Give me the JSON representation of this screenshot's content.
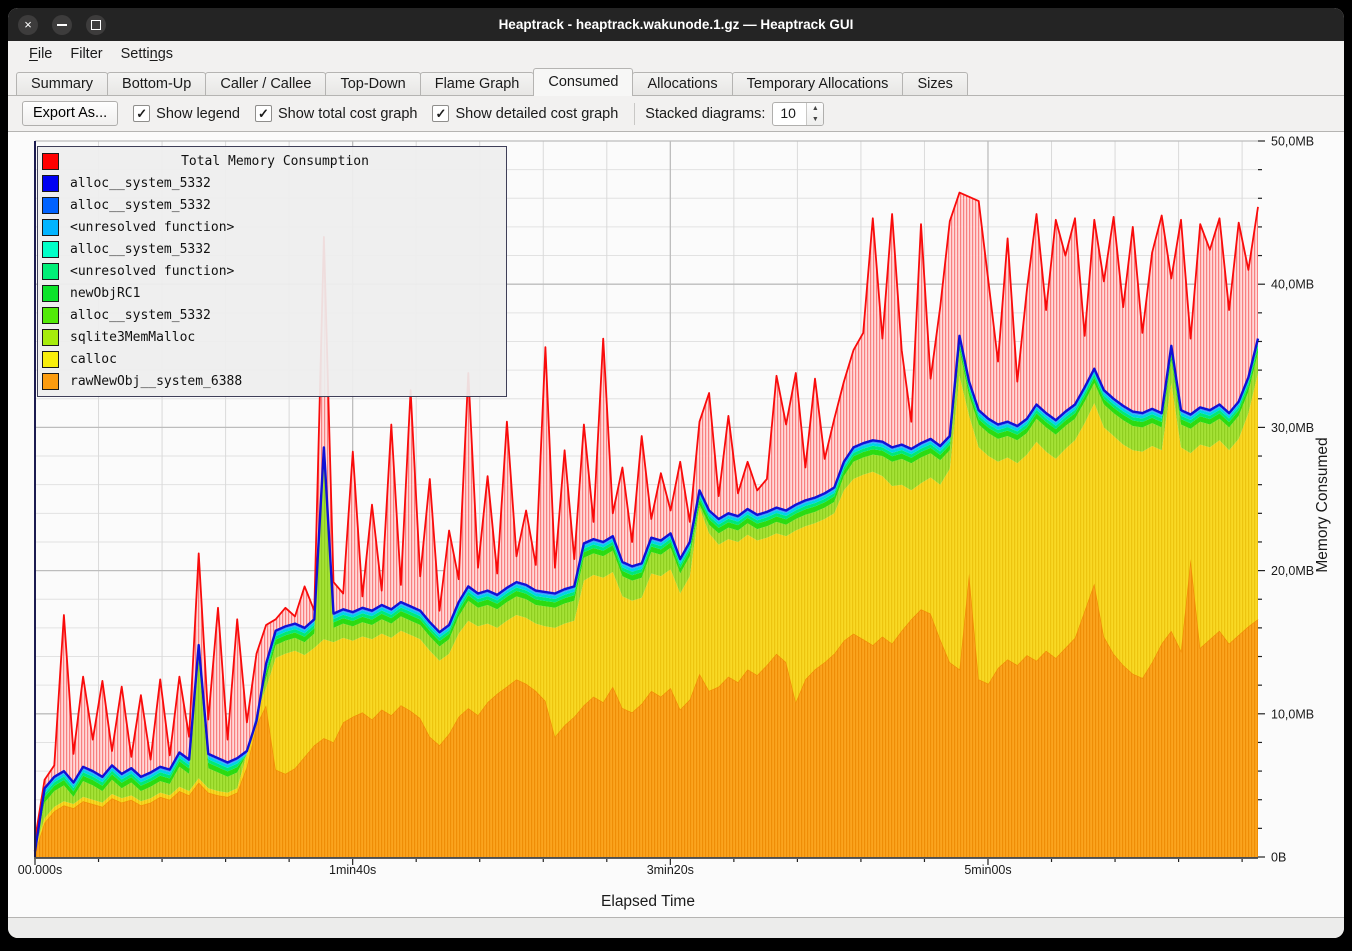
{
  "window": {
    "title": "Heaptrack - heaptrack.wakunode.1.gz — Heaptrack GUI",
    "buttons": [
      "close",
      "minimize",
      "maximize"
    ]
  },
  "menu": {
    "items": [
      {
        "label": "File",
        "underline_index": 0
      },
      {
        "label": "Filter",
        "underline_index": -1
      },
      {
        "label": "Settings",
        "underline_index": 5
      }
    ]
  },
  "tabs": {
    "active": "Consumed",
    "items": [
      "Summary",
      "Bottom-Up",
      "Caller / Callee",
      "Top-Down",
      "Flame Graph",
      "Consumed",
      "Allocations",
      "Temporary Allocations",
      "Sizes"
    ]
  },
  "toolbar": {
    "export_label": "Export As...",
    "checkboxes": [
      {
        "label": "Show legend",
        "checked": true
      },
      {
        "label": "Show total cost graph",
        "checked": true
      },
      {
        "label": "Show detailed cost graph",
        "checked": true
      }
    ],
    "check_glyph": "✓",
    "stacked_label": "Stacked diagrams:",
    "stacked_value": "10"
  },
  "legend": {
    "title": "Total Memory Consumption",
    "title_color": "#ff0000",
    "items": [
      {
        "label": "alloc__system_5332",
        "color": "#0000f2"
      },
      {
        "label": "alloc__system_5332",
        "color": "#0062ff"
      },
      {
        "label": "<unresolved function>",
        "color": "#00b4ff"
      },
      {
        "label": "alloc__system_5332",
        "color": "#00ffc8"
      },
      {
        "label": "<unresolved function>",
        "color": "#00ee77"
      },
      {
        "label": "newObjRC1",
        "color": "#0ce32a"
      },
      {
        "label": "alloc__system_5332",
        "color": "#52ea08"
      },
      {
        "label": "sqlite3MemMalloc",
        "color": "#a6ec0b"
      },
      {
        "label": "calloc",
        "color": "#f8ee0c"
      },
      {
        "label": "rawNewObj__system_6388",
        "color": "#fc9c0f"
      }
    ]
  },
  "chart_data": {
    "type": "area",
    "stacked": true,
    "title": "Total Memory Consumption",
    "xlabel": "Elapsed Time",
    "ylabel": "Memory Consumed",
    "x_axis": {
      "tick_labels": [
        "00.000s",
        "1min40s",
        "3min20s",
        "5min00s"
      ],
      "tick_values_s": [
        0,
        100,
        200,
        300
      ],
      "minor_step_s": 20,
      "range_s": [
        0,
        385
      ]
    },
    "y_axis": {
      "tick_labels": [
        "0B",
        "10,0MB",
        "20,0MB",
        "30,0MB",
        "40,0MB",
        "50,0MB"
      ],
      "tick_values_mb": [
        0,
        10,
        20,
        30,
        40,
        50
      ],
      "minor_step_mb": 2,
      "range_mb": [
        0,
        50
      ]
    },
    "sample_count": 128,
    "series": [
      {
        "name": "Total Memory Consumption",
        "color": "#f90b0b",
        "render": "spiky total line with hatched fill down to stack top",
        "values_mb": [
          1.2,
          5.4,
          6.4,
          16.9,
          7.2,
          12.6,
          8.2,
          12.3,
          7.4,
          11.9,
          7.0,
          11.3,
          6.8,
          12.4,
          7.1,
          12.6,
          8.4,
          21.2,
          9.6,
          17.4,
          8.2,
          16.6,
          9.4,
          14.2,
          16.2,
          16.6,
          17.4,
          16.8,
          18.9,
          17.2,
          43.3,
          19.2,
          18.4,
          28.3,
          18.2,
          24.6,
          18.6,
          30.2,
          19.0,
          32.6,
          19.6,
          26.4,
          17.2,
          22.8,
          19.4,
          33.8,
          20.2,
          26.6,
          19.8,
          30.4,
          21.0,
          24.2,
          20.4,
          35.6,
          20.2,
          28.4,
          20.8,
          30.2,
          23.4,
          36.2,
          24.0,
          27.2,
          22.0,
          29.4,
          23.6,
          26.8,
          24.2,
          27.6,
          23.4,
          30.4,
          32.4,
          25.2,
          30.8,
          25.4,
          27.6,
          25.6,
          26.4,
          33.6,
          30.2,
          33.8,
          27.2,
          33.4,
          27.8,
          30.6,
          33.2,
          35.4,
          36.6,
          44.6,
          36.2,
          44.9,
          35.4,
          30.4,
          44.2,
          33.4,
          38.4,
          44.4,
          46.4,
          46.1,
          45.8,
          40.2,
          34.6,
          43.2,
          33.2,
          39.6,
          44.9,
          38.2,
          44.5,
          42.0,
          44.6,
          36.4,
          44.5,
          40.2,
          44.7,
          38.4,
          44.0,
          36.6,
          42.2,
          44.8,
          40.4,
          44.5,
          36.2,
          44.2,
          42.4,
          44.6,
          38.2,
          44.3,
          41.0,
          45.4
        ]
      },
      {
        "name": "stack top: blue alloc__system_5332 / <unresolved function> bands",
        "color": "#1111d6",
        "render": "line on top of stacked areas",
        "values_mb": [
          0.4,
          4.8,
          5.6,
          6.0,
          5.2,
          6.3,
          6.0,
          5.6,
          6.4,
          5.8,
          6.2,
          5.6,
          5.9,
          6.3,
          6.1,
          7.3,
          6.8,
          14.8,
          7.2,
          6.9,
          6.6,
          6.9,
          7.4,
          9.5,
          13.5,
          15.8,
          16.1,
          16.3,
          16.0,
          16.6,
          28.6,
          17.0,
          17.3,
          17.1,
          17.4,
          17.2,
          17.6,
          17.3,
          17.8,
          17.5,
          17.2,
          16.4,
          15.7,
          16.2,
          17.8,
          18.9,
          18.4,
          18.6,
          18.3,
          18.8,
          19.2,
          19.0,
          18.6,
          18.5,
          18.4,
          18.7,
          18.9,
          21.9,
          22.2,
          22.0,
          22.4,
          20.6,
          20.3,
          20.5,
          22.3,
          22.1,
          22.6,
          20.8,
          22.0,
          25.6,
          24.2,
          23.6,
          24.0,
          23.8,
          24.3,
          23.9,
          24.1,
          24.4,
          24.2,
          24.6,
          24.9,
          25.1,
          25.4,
          25.8,
          27.6,
          28.6,
          28.9,
          29.1,
          29.0,
          28.6,
          28.8,
          28.5,
          28.9,
          29.2,
          28.7,
          29.4,
          36.4,
          33.2,
          31.2,
          30.6,
          30.2,
          30.4,
          30.1,
          30.6,
          31.6,
          31.0,
          30.5,
          31.1,
          31.6,
          32.8,
          34.1,
          32.6,
          32.0,
          31.5,
          31.1,
          31.0,
          31.3,
          31.0,
          35.7,
          31.2,
          30.9,
          31.4,
          31.2,
          31.6,
          31.0,
          31.8,
          33.5,
          36.2
        ]
      },
      {
        "name": "calloc top (green sqlite3MemMalloc/newObjRC1 bands sit between this and blue)",
        "color": "#f9d924",
        "render": "area top edge",
        "values_mb": [
          0.6,
          2.7,
          3.5,
          3.9,
          3.7,
          4.2,
          4.0,
          3.8,
          4.4,
          4.1,
          4.3,
          3.9,
          4.1,
          4.5,
          4.3,
          4.9,
          4.6,
          5.5,
          4.8,
          4.6,
          4.5,
          4.8,
          7.2,
          10.0,
          11.8,
          13.9,
          14.2,
          14.4,
          14.1,
          14.6,
          15.2,
          15.0,
          15.3,
          15.1,
          15.4,
          15.2,
          15.6,
          15.3,
          15.8,
          15.5,
          15.2,
          14.4,
          13.7,
          14.2,
          15.6,
          16.5,
          16.1,
          16.3,
          16.0,
          16.5,
          16.9,
          16.7,
          16.3,
          16.1,
          16.0,
          16.3,
          16.5,
          19.3,
          19.7,
          19.5,
          19.9,
          18.2,
          17.9,
          18.1,
          19.8,
          19.6,
          20.1,
          18.4,
          19.6,
          24.4,
          22.6,
          21.8,
          22.2,
          22.0,
          22.5,
          22.1,
          22.3,
          22.6,
          22.4,
          22.8,
          23.1,
          23.3,
          23.6,
          24.0,
          25.6,
          26.4,
          26.7,
          26.9,
          26.6,
          25.9,
          26.0,
          25.6,
          26.1,
          26.5,
          26.0,
          27.1,
          33.6,
          30.8,
          28.6,
          28.0,
          27.6,
          27.9,
          27.5,
          28.1,
          29.0,
          28.3,
          27.8,
          28.5,
          29.1,
          30.3,
          31.7,
          30.0,
          29.4,
          28.8,
          28.4,
          28.3,
          28.7,
          28.4,
          33.1,
          28.6,
          28.2,
          28.8,
          28.6,
          29.1,
          28.4,
          29.2,
          31.0,
          33.8
        ]
      },
      {
        "name": "rawNewObj__system_6388 top",
        "color": "#fba41e",
        "render": "area top edge (bottom layer)",
        "values_mb": [
          0.3,
          2.4,
          3.2,
          3.6,
          3.4,
          3.9,
          3.7,
          3.5,
          4.1,
          3.8,
          4.0,
          3.6,
          3.8,
          4.2,
          4.0,
          4.6,
          4.3,
          5.2,
          4.5,
          4.3,
          4.2,
          4.5,
          6.3,
          9.2,
          10.6,
          6.1,
          5.8,
          6.2,
          7.0,
          7.8,
          8.3,
          8.0,
          9.4,
          9.8,
          10.1,
          9.6,
          10.3,
          9.9,
          10.6,
          10.2,
          9.7,
          8.4,
          7.8,
          8.6,
          9.8,
          10.4,
          9.9,
          10.8,
          11.4,
          11.9,
          12.4,
          12.1,
          11.6,
          10.9,
          8.4,
          9.2,
          9.8,
          10.6,
          11.2,
          10.8,
          11.9,
          10.4,
          10.1,
          10.7,
          11.6,
          11.2,
          11.8,
          10.3,
          11.0,
          12.8,
          11.6,
          11.9,
          12.6,
          12.2,
          13.1,
          12.7,
          13.4,
          14.2,
          13.6,
          10.8,
          12.4,
          13.1,
          13.6,
          14.2,
          15.1,
          15.6,
          15.2,
          14.8,
          15.4,
          14.9,
          15.8,
          16.6,
          17.3,
          17.0,
          15.2,
          13.6,
          13.1,
          19.8,
          12.4,
          12.1,
          13.2,
          13.8,
          13.4,
          14.1,
          13.7,
          14.4,
          13.9,
          14.6,
          15.3,
          17.2,
          19.1,
          15.4,
          14.2,
          13.4,
          12.8,
          12.5,
          13.6,
          14.9,
          15.8,
          14.4,
          20.8,
          14.6,
          15.2,
          15.8,
          14.9,
          15.5,
          16.1,
          16.6
        ]
      }
    ]
  }
}
